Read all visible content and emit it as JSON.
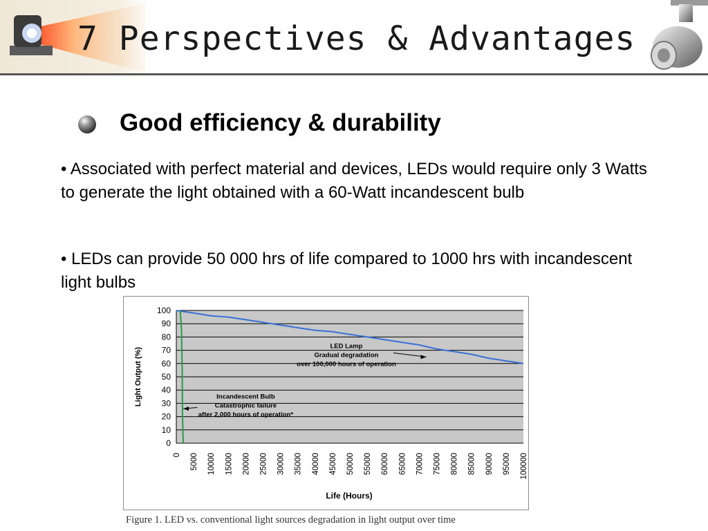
{
  "slide": {
    "title": "7 Perspectives & Advantages",
    "heading": "Good efficiency & durability",
    "paragraphs": [
      "• Associated with perfect material and devices, LEDs would require only 3 Watts to generate the light obtained with a 60-Watt incandescent bulb",
      "• LEDs can provide 50 000 hrs of life compared to 1000 hrs with incandescent light bulbs"
    ],
    "caption": "Figure 1. LED vs. conventional light sources degradation in light output over time"
  },
  "colors": {
    "led_line": "#3a6fd8",
    "incandescent_line": "#2a9a4a",
    "plot_bg": "#c8c8c8",
    "gridline": "#000000"
  },
  "chart_data": {
    "type": "line",
    "title": "",
    "xlabel": "Life (Hours)",
    "ylabel": "Light Output (%)",
    "xlim": [
      0,
      100000
    ],
    "ylim": [
      0,
      100
    ],
    "x_ticks": [
      "0",
      "5000",
      "10000",
      "15000",
      "20000",
      "25000",
      "30000",
      "35000",
      "40000",
      "45000",
      "50000",
      "55000",
      "60000",
      "65000",
      "70000",
      "75000",
      "80000",
      "85000",
      "90000",
      "95000",
      "100000"
    ],
    "y_ticks": [
      "0",
      "10",
      "20",
      "30",
      "40",
      "50",
      "60",
      "70",
      "80",
      "90",
      "100"
    ],
    "grid": true,
    "series": [
      {
        "key": "led",
        "x": [
          0,
          5000,
          10000,
          15000,
          20000,
          25000,
          30000,
          35000,
          40000,
          45000,
          50000,
          55000,
          60000,
          65000,
          70000,
          75000,
          80000,
          85000,
          90000,
          95000,
          100000
        ],
        "y": [
          100,
          98,
          96,
          95,
          93,
          91,
          89,
          87,
          85,
          84,
          82,
          80,
          78,
          76,
          74,
          71,
          69,
          67,
          64,
          62,
          60
        ]
      },
      {
        "key": "incandescent",
        "x": [
          1000,
          1200,
          1500,
          1700,
          1800,
          2000
        ],
        "y": [
          100,
          98,
          85,
          55,
          20,
          0
        ]
      }
    ],
    "annotations": [
      {
        "lines": [
          "LED Lamp",
          "Gradual degradation",
          "over 100,000 hours of operation"
        ],
        "x": 49000,
        "y": 67,
        "arrow_to": [
          72000,
          65
        ]
      },
      {
        "lines": [
          "Incandescent Bulb",
          "Catastrophic failure",
          "after 2,000 hours of operation*"
        ],
        "x": 20000,
        "y": 29,
        "arrow_to": [
          2000,
          26
        ]
      }
    ]
  }
}
